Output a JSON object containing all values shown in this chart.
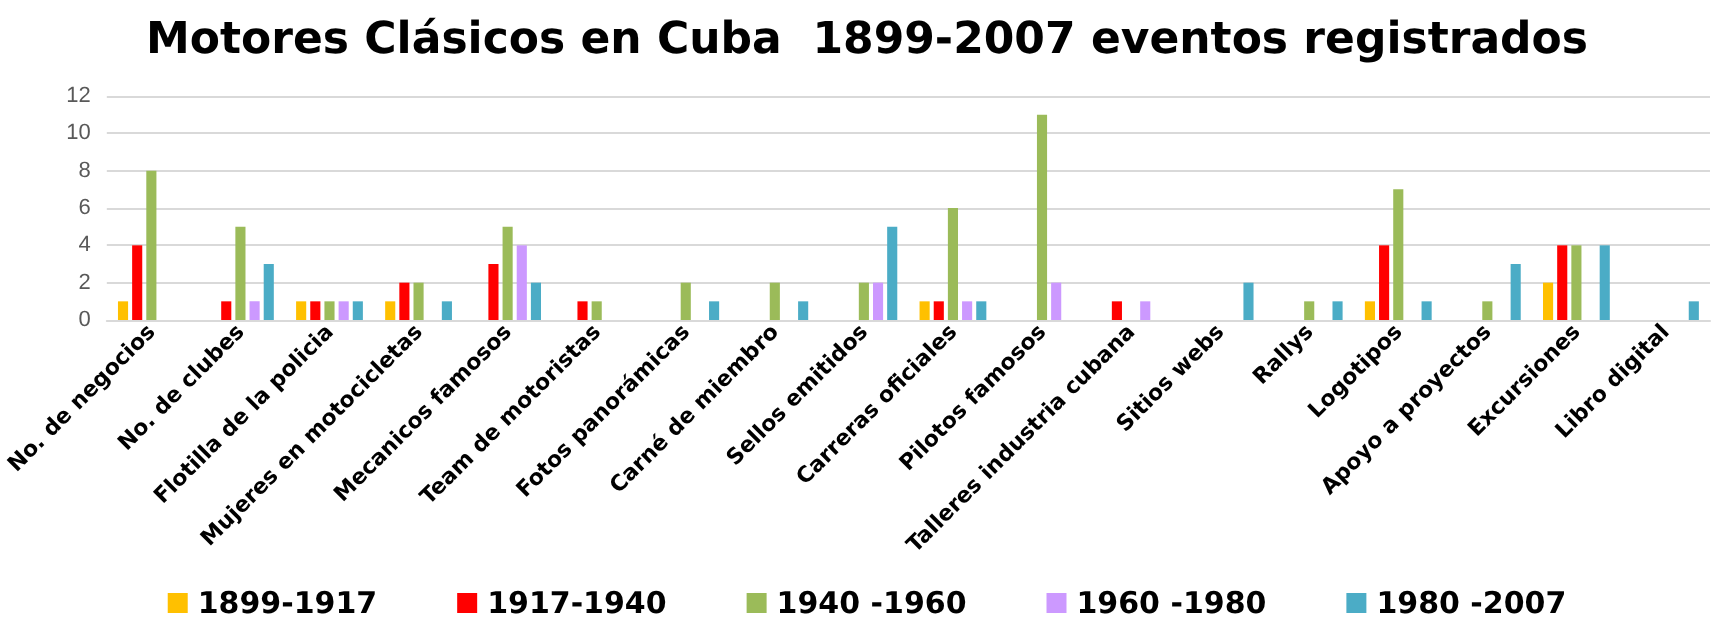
{
  "chart_data": {
    "type": "bar",
    "title": "Motores Clásicos en Cuba  1899-2007 eventos registrados",
    "categories": [
      "No. de negocios",
      "No. de clubes",
      "Flotilla de la policia",
      "Mujeres en motocicletas",
      "Mecanicos famosos",
      "Team de motoristas",
      "Fotos panorámicas",
      "Carné de miembro",
      "Sellos emitidos",
      "Carreras oficiales",
      "Pilotos famosos",
      "Talleres industria cubana",
      "Sitios webs",
      "Rallys",
      "Logotipos",
      "Apoyo a proyectos",
      "Excursiones",
      "Libro digital"
    ],
    "series": [
      {
        "name": "1899-1917",
        "color": "#ffc000",
        "values": [
          1,
          0,
          1,
          1,
          0,
          0,
          0,
          0,
          0,
          1,
          0,
          0,
          0,
          0,
          1,
          0,
          2,
          0
        ]
      },
      {
        "name": "1917-1940",
        "color": "#ff0000",
        "values": [
          4,
          1,
          1,
          2,
          3,
          1,
          0,
          0,
          0,
          1,
          0,
          1,
          0,
          0,
          4,
          0,
          4,
          0
        ]
      },
      {
        "name": "1940 -1960",
        "color": "#9bbb59",
        "values": [
          8,
          5,
          1,
          2,
          5,
          1,
          2,
          2,
          2,
          6,
          11,
          0,
          0,
          1,
          7,
          1,
          4,
          0
        ]
      },
      {
        "name": "1960 -1980",
        "color": "#cc99ff",
        "values": [
          0,
          1,
          1,
          0,
          4,
          0,
          0,
          0,
          2,
          1,
          2,
          1,
          0,
          0,
          0,
          0,
          0,
          0
        ]
      },
      {
        "name": "1980 -2007",
        "color": "#4bacc6",
        "values": [
          0,
          3,
          1,
          1,
          2,
          0,
          1,
          1,
          5,
          1,
          0,
          0,
          2,
          1,
          1,
          3,
          4,
          1
        ]
      }
    ],
    "ylim": [
      0,
      12
    ],
    "yticks": [
      0,
      2,
      4,
      6,
      8,
      10,
      12
    ],
    "grid": "y",
    "legend": "bottom"
  }
}
